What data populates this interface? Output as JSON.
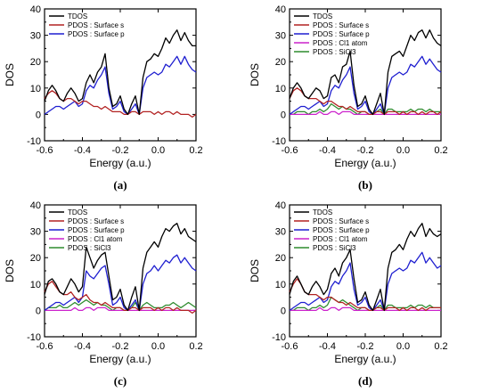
{
  "figure": {
    "panel_labels": [
      "(a)",
      "(b)",
      "(c)",
      "(d)"
    ]
  },
  "chart_data": [
    {
      "type": "line",
      "panel": "(a)",
      "xlabel": "Energy (a.u.)",
      "ylabel": "DOS",
      "xlim": [
        -0.6,
        0.2
      ],
      "ylim": [
        -10,
        40
      ],
      "xticks": [
        "-0.6",
        "-0.4",
        "-0.2",
        "0.0",
        "0.2"
      ],
      "yticks": [
        "-10",
        "0",
        "10",
        "20",
        "30",
        "40"
      ],
      "legend": "top-left",
      "x": [
        -0.6,
        -0.58,
        -0.56,
        -0.54,
        -0.52,
        -0.5,
        -0.48,
        -0.46,
        -0.44,
        -0.42,
        -0.4,
        -0.38,
        -0.36,
        -0.34,
        -0.32,
        -0.3,
        -0.28,
        -0.26,
        -0.24,
        -0.22,
        -0.2,
        -0.18,
        -0.16,
        -0.14,
        -0.12,
        -0.1,
        -0.08,
        -0.06,
        -0.04,
        -0.02,
        0.0,
        0.02,
        0.04,
        0.06,
        0.08,
        0.1,
        0.12,
        0.14,
        0.16,
        0.18,
        0.2
      ],
      "series": [
        {
          "name": "TDOS",
          "color": "#000000",
          "values": [
            5,
            9,
            11,
            9,
            6,
            5,
            8,
            10,
            8,
            5,
            6,
            12,
            15,
            12,
            16,
            18,
            23,
            10,
            3,
            4,
            7,
            2,
            0,
            4,
            7,
            0,
            14,
            20,
            21,
            23,
            22,
            25,
            29,
            27,
            30,
            32,
            28,
            31,
            28,
            26,
            26
          ]
        },
        {
          "name": "PDOS : Surface s",
          "color": "#b22222",
          "values": [
            6,
            8,
            9,
            8,
            6,
            5,
            6,
            6,
            5,
            4,
            5,
            5,
            4,
            3,
            3,
            2,
            3,
            2,
            1,
            1,
            1,
            0,
            0,
            1,
            1,
            0,
            1,
            1,
            1,
            0,
            1,
            0,
            1,
            1,
            0,
            1,
            0,
            0,
            0,
            -1,
            0
          ]
        },
        {
          "name": "PDOS : Surface p",
          "color": "#1f1fd0",
          "values": [
            0,
            1,
            2,
            3,
            3,
            2,
            3,
            4,
            5,
            3,
            4,
            9,
            11,
            10,
            13,
            15,
            18,
            8,
            2,
            3,
            5,
            1,
            0,
            2,
            4,
            0,
            10,
            14,
            15,
            16,
            15,
            16,
            19,
            18,
            20,
            22,
            19,
            22,
            19,
            17,
            16
          ]
        }
      ]
    },
    {
      "type": "line",
      "panel": "(b)",
      "xlabel": "Energy (a.u.)",
      "ylabel": "DOS",
      "xlim": [
        -0.6,
        0.2
      ],
      "ylim": [
        -10,
        40
      ],
      "xticks": [
        "-0.6",
        "-0.4",
        "-0.2",
        "0.0",
        "0.2"
      ],
      "yticks": [
        "-10",
        "0",
        "10",
        "20",
        "30",
        "40"
      ],
      "legend": "top-left",
      "x": [
        -0.6,
        -0.58,
        -0.56,
        -0.54,
        -0.52,
        -0.5,
        -0.48,
        -0.46,
        -0.44,
        -0.42,
        -0.4,
        -0.38,
        -0.36,
        -0.34,
        -0.32,
        -0.3,
        -0.28,
        -0.26,
        -0.24,
        -0.22,
        -0.2,
        -0.18,
        -0.16,
        -0.14,
        -0.12,
        -0.1,
        -0.08,
        -0.06,
        -0.04,
        -0.02,
        0.0,
        0.02,
        0.04,
        0.06,
        0.08,
        0.1,
        0.12,
        0.14,
        0.16,
        0.18,
        0.2
      ],
      "series": [
        {
          "name": "TDOS",
          "color": "#000000",
          "values": [
            6,
            10,
            12,
            10,
            7,
            6,
            8,
            10,
            9,
            6,
            7,
            14,
            15,
            12,
            18,
            19,
            24,
            11,
            3,
            4,
            7,
            2,
            0,
            4,
            8,
            0,
            16,
            22,
            23,
            24,
            22,
            26,
            30,
            28,
            31,
            32,
            29,
            32,
            29,
            27,
            26
          ]
        },
        {
          "name": "PDOS : Surface s",
          "color": "#b22222",
          "values": [
            6,
            9,
            10,
            9,
            7,
            6,
            6,
            6,
            5,
            4,
            5,
            5,
            4,
            3,
            3,
            2,
            3,
            2,
            1,
            1,
            1,
            0,
            0,
            1,
            1,
            0,
            1,
            1,
            1,
            0,
            1,
            0,
            1,
            1,
            0,
            1,
            0,
            1,
            1,
            0,
            1
          ]
        },
        {
          "name": "PDOS : Surface p",
          "color": "#1f1fd0",
          "values": [
            0,
            1,
            2,
            3,
            3,
            2,
            3,
            4,
            5,
            3,
            4,
            9,
            11,
            10,
            13,
            15,
            18,
            8,
            2,
            3,
            5,
            1,
            0,
            2,
            4,
            0,
            10,
            14,
            15,
            16,
            15,
            16,
            19,
            18,
            20,
            22,
            19,
            21,
            19,
            17,
            16
          ]
        },
        {
          "name": "PDOS : Cl1 atom",
          "color": "#cc22cc",
          "values": [
            0,
            0,
            0,
            0,
            0,
            0,
            0,
            0,
            1,
            0,
            0,
            1,
            1,
            0,
            1,
            1,
            1,
            0,
            0,
            0,
            0,
            0,
            0,
            0,
            0,
            0,
            0,
            0,
            0,
            0,
            0,
            0,
            0,
            0,
            0,
            0,
            0,
            0,
            0,
            0,
            0
          ]
        },
        {
          "name": "PDOS : SiCl3",
          "color": "#2e8b2e",
          "values": [
            0,
            0,
            1,
            1,
            1,
            0,
            1,
            1,
            2,
            1,
            2,
            4,
            3,
            2,
            3,
            2,
            2,
            1,
            0,
            1,
            1,
            0,
            0,
            1,
            2,
            0,
            2,
            2,
            1,
            1,
            1,
            1,
            2,
            1,
            2,
            2,
            1,
            2,
            1,
            1,
            1
          ]
        }
      ]
    },
    {
      "type": "line",
      "panel": "(c)",
      "xlabel": "Energy (a.u.)",
      "ylabel": "DOS",
      "xlim": [
        -0.6,
        0.2
      ],
      "ylim": [
        -10,
        40
      ],
      "xticks": [
        "-0.6",
        "-0.4",
        "-0.2",
        "0.0",
        "0.2"
      ],
      "yticks": [
        "-10",
        "0",
        "10",
        "20",
        "30",
        "40"
      ],
      "legend": "top-left",
      "x": [
        -0.6,
        -0.58,
        -0.56,
        -0.54,
        -0.52,
        -0.5,
        -0.48,
        -0.46,
        -0.44,
        -0.42,
        -0.4,
        -0.38,
        -0.36,
        -0.34,
        -0.32,
        -0.3,
        -0.28,
        -0.26,
        -0.24,
        -0.22,
        -0.2,
        -0.18,
        -0.16,
        -0.14,
        -0.12,
        -0.1,
        -0.08,
        -0.06,
        -0.04,
        -0.02,
        0.0,
        0.02,
        0.04,
        0.06,
        0.08,
        0.1,
        0.12,
        0.14,
        0.16,
        0.18,
        0.2
      ],
      "series": [
        {
          "name": "TDOS",
          "color": "#000000",
          "values": [
            6,
            11,
            12,
            10,
            7,
            6,
            9,
            12,
            10,
            7,
            9,
            24,
            20,
            16,
            19,
            21,
            22,
            13,
            4,
            5,
            8,
            2,
            0,
            5,
            9,
            0,
            16,
            22,
            24,
            26,
            24,
            28,
            31,
            30,
            32,
            33,
            29,
            31,
            28,
            27,
            26
          ]
        },
        {
          "name": "PDOS : Surface s",
          "color": "#b22222",
          "values": [
            7,
            10,
            11,
            9,
            7,
            6,
            6,
            7,
            5,
            4,
            5,
            6,
            4,
            3,
            3,
            2,
            3,
            2,
            1,
            1,
            1,
            0,
            0,
            1,
            1,
            0,
            1,
            1,
            1,
            0,
            1,
            0,
            1,
            1,
            0,
            1,
            0,
            0,
            0,
            -1,
            0
          ]
        },
        {
          "name": "PDOS : Surface p",
          "color": "#1f1fd0",
          "values": [
            0,
            1,
            2,
            3,
            3,
            2,
            3,
            4,
            5,
            3,
            5,
            15,
            13,
            12,
            14,
            16,
            17,
            10,
            2,
            3,
            5,
            1,
            0,
            2,
            4,
            0,
            10,
            14,
            15,
            17,
            15,
            17,
            19,
            18,
            20,
            21,
            18,
            20,
            18,
            16,
            15
          ]
        },
        {
          "name": "PDOS : Cl1 atom",
          "color": "#cc22cc",
          "values": [
            0,
            0,
            0,
            0,
            0,
            0,
            0,
            0,
            1,
            0,
            0,
            1,
            1,
            0,
            1,
            1,
            1,
            0,
            0,
            0,
            0,
            0,
            0,
            0,
            0,
            0,
            0,
            0,
            0,
            0,
            0,
            0,
            0,
            0,
            0,
            0,
            0,
            0,
            0,
            0,
            0
          ]
        },
        {
          "name": "PDOS : SiCl3",
          "color": "#2e8b2e",
          "values": [
            0,
            1,
            1,
            1,
            2,
            1,
            1,
            2,
            3,
            2,
            3,
            4,
            3,
            2,
            3,
            2,
            2,
            1,
            0,
            1,
            1,
            0,
            0,
            1,
            3,
            0,
            2,
            3,
            2,
            1,
            1,
            1,
            2,
            2,
            3,
            2,
            1,
            2,
            3,
            2,
            1
          ]
        }
      ]
    },
    {
      "type": "line",
      "panel": "(d)",
      "xlabel": "Energy (a.u.)",
      "ylabel": "DOS",
      "xlim": [
        -0.6,
        0.2
      ],
      "ylim": [
        -10,
        40
      ],
      "xticks": [
        "-0.6",
        "-0.4",
        "-0.2",
        "0.0",
        "0.2"
      ],
      "yticks": [
        "-10",
        "0",
        "10",
        "20",
        "30",
        "40"
      ],
      "legend": "top-left",
      "x": [
        -0.6,
        -0.58,
        -0.56,
        -0.54,
        -0.52,
        -0.5,
        -0.48,
        -0.46,
        -0.44,
        -0.42,
        -0.4,
        -0.38,
        -0.36,
        -0.34,
        -0.32,
        -0.3,
        -0.28,
        -0.26,
        -0.24,
        -0.22,
        -0.2,
        -0.18,
        -0.16,
        -0.14,
        -0.12,
        -0.1,
        -0.08,
        -0.06,
        -0.04,
        -0.02,
        0.0,
        0.02,
        0.04,
        0.06,
        0.08,
        0.1,
        0.12,
        0.14,
        0.16,
        0.18,
        0.2
      ],
      "series": [
        {
          "name": "TDOS",
          "color": "#000000",
          "values": [
            6,
            11,
            13,
            10,
            7,
            6,
            9,
            11,
            9,
            6,
            8,
            14,
            16,
            13,
            18,
            20,
            23,
            12,
            3,
            4,
            7,
            2,
            0,
            4,
            8,
            0,
            16,
            22,
            23,
            25,
            23,
            27,
            30,
            28,
            31,
            33,
            28,
            31,
            29,
            28,
            29
          ]
        },
        {
          "name": "PDOS : Surface s",
          "color": "#b22222",
          "values": [
            7,
            10,
            12,
            10,
            7,
            6,
            6,
            6,
            5,
            4,
            5,
            5,
            4,
            3,
            3,
            2,
            3,
            2,
            1,
            1,
            1,
            0,
            0,
            1,
            1,
            0,
            1,
            1,
            1,
            0,
            1,
            0,
            1,
            1,
            0,
            1,
            0,
            1,
            1,
            1,
            1
          ]
        },
        {
          "name": "PDOS : Surface p",
          "color": "#1f1fd0",
          "values": [
            0,
            1,
            2,
            3,
            3,
            2,
            3,
            4,
            5,
            3,
            4,
            9,
            11,
            10,
            13,
            15,
            18,
            8,
            2,
            3,
            5,
            1,
            0,
            2,
            4,
            0,
            10,
            14,
            15,
            16,
            15,
            16,
            19,
            18,
            20,
            22,
            18,
            20,
            18,
            16,
            17
          ]
        },
        {
          "name": "PDOS : Cl1 atom",
          "color": "#cc22cc",
          "values": [
            0,
            0,
            0,
            0,
            0,
            0,
            0,
            0,
            1,
            0,
            0,
            1,
            1,
            0,
            1,
            1,
            1,
            0,
            0,
            0,
            0,
            0,
            0,
            0,
            0,
            0,
            0,
            0,
            0,
            0,
            0,
            0,
            0,
            0,
            0,
            0,
            0,
            0,
            0,
            0,
            0
          ]
        },
        {
          "name": "PDOS : SiCl3",
          "color": "#2e8b2e",
          "values": [
            0,
            0,
            1,
            1,
            1,
            0,
            1,
            1,
            2,
            1,
            2,
            5,
            4,
            3,
            4,
            3,
            2,
            1,
            0,
            1,
            1,
            0,
            0,
            1,
            2,
            0,
            2,
            2,
            1,
            1,
            1,
            1,
            2,
            1,
            2,
            2,
            1,
            2,
            1,
            1,
            1
          ]
        }
      ]
    }
  ]
}
